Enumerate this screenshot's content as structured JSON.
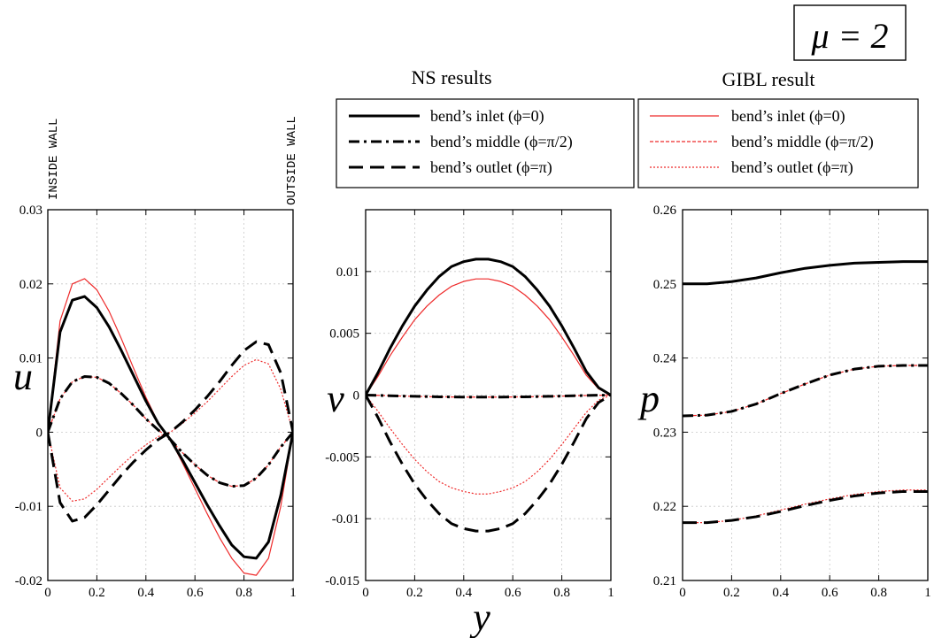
{
  "figure": {
    "param_label": "μ = 2",
    "ns_title": "NS results",
    "gibl_title": "GIBL result",
    "inside_wall": "INSIDE WALL",
    "outside_wall": "OUTSIDE WALL",
    "shared_xlabel": "y",
    "colors": {
      "ns": "#000000",
      "gibl": "#ee2a2a",
      "grid": "#c8c8c8"
    },
    "ns_legend": [
      {
        "label": "bend’s inlet (ϕ=0)",
        "style": "solid"
      },
      {
        "label": "bend’s middle (ϕ=π/2)",
        "style": "dashdot"
      },
      {
        "label": "bend’s outlet (ϕ=π)",
        "style": "dashed"
      }
    ],
    "gibl_legend": [
      {
        "label": "bend’s inlet (ϕ=0)",
        "style": "solid"
      },
      {
        "label": "bend’s middle (ϕ=π/2)",
        "style": "dashed"
      },
      {
        "label": "bend’s outlet (ϕ=π)",
        "style": "dotted"
      }
    ]
  },
  "chart_data": [
    {
      "type": "line",
      "ylabel": "u",
      "xlim": [
        0,
        1
      ],
      "ylim": [
        -0.02,
        0.03
      ],
      "xticks": [
        "0",
        "0.2",
        "0.4",
        "0.6",
        "0.8",
        "1"
      ],
      "yticks": [
        "-0.02",
        "-0.01",
        "0",
        "0.01",
        "0.02",
        "0.03"
      ],
      "grid": true,
      "x": [
        0,
        0.05,
        0.1,
        0.15,
        0.2,
        0.25,
        0.3,
        0.35,
        0.4,
        0.45,
        0.5,
        0.55,
        0.6,
        0.65,
        0.7,
        0.75,
        0.8,
        0.85,
        0.9,
        0.95,
        1
      ],
      "series": [
        {
          "name": "bend’s inlet (ϕ=0)",
          "source": "NS",
          "values": [
            0,
            0.0135,
            0.0178,
            0.0183,
            0.0168,
            0.0142,
            0.011,
            0.0076,
            0.0042,
            0.0012,
            -0.001,
            -0.0038,
            -0.0068,
            -0.0098,
            -0.0126,
            -0.0152,
            -0.0168,
            -0.017,
            -0.0148,
            -0.0085,
            0
          ]
        },
        {
          "name": "bend’s inlet (ϕ=0)",
          "source": "GIBL",
          "values": [
            0,
            0.015,
            0.02,
            0.0207,
            0.0192,
            0.0163,
            0.0126,
            0.0086,
            0.0047,
            0.0013,
            -0.001,
            -0.0042,
            -0.0076,
            -0.011,
            -0.0142,
            -0.017,
            -0.019,
            -0.0193,
            -0.017,
            -0.01,
            0
          ]
        },
        {
          "name": "bend’s middle (ϕ=π/2)",
          "source": "NS",
          "values": [
            0,
            0.0045,
            0.0068,
            0.0075,
            0.0074,
            0.0066,
            0.0052,
            0.0036,
            0.0018,
            0.0003,
            -0.001,
            -0.0028,
            -0.0044,
            -0.0058,
            -0.0068,
            -0.0073,
            -0.0072,
            -0.0062,
            -0.0044,
            -0.002,
            0
          ]
        },
        {
          "name": "bend’s middle (ϕ=π/2)",
          "source": "GIBL",
          "values": [
            0,
            0.0045,
            0.0068,
            0.0075,
            0.0074,
            0.0066,
            0.0052,
            0.0036,
            0.0018,
            0.0003,
            -0.001,
            -0.0028,
            -0.0044,
            -0.0058,
            -0.0068,
            -0.0073,
            -0.0072,
            -0.0062,
            -0.0044,
            -0.002,
            0
          ]
        },
        {
          "name": "bend’s outlet (ϕ=π)",
          "source": "NS",
          "values": [
            0,
            -0.0095,
            -0.012,
            -0.0115,
            -0.0098,
            -0.0078,
            -0.0058,
            -0.004,
            -0.0024,
            -0.001,
            0.0,
            0.0014,
            0.003,
            0.0048,
            0.0068,
            0.009,
            0.011,
            0.0122,
            0.0118,
            0.008,
            0
          ]
        },
        {
          "name": "bend’s outlet (ϕ=π)",
          "source": "GIBL",
          "values": [
            0,
            -0.0075,
            -0.0093,
            -0.009,
            -0.0077,
            -0.0061,
            -0.0045,
            -0.003,
            -0.0017,
            -0.0006,
            0.0,
            0.0012,
            0.0026,
            0.0041,
            0.0058,
            0.0075,
            0.009,
            0.0098,
            0.0092,
            0.0058,
            0
          ]
        }
      ]
    },
    {
      "type": "line",
      "ylabel": "v",
      "xlabel": "y",
      "xlim": [
        0,
        1
      ],
      "ylim": [
        -0.015,
        0.015
      ],
      "xticks": [
        "0",
        "0.2",
        "0.4",
        "0.6",
        "0.8",
        "1"
      ],
      "yticks": [
        "-0.015",
        "-0.01",
        "-0.005",
        "0",
        "0.005",
        "0.01"
      ],
      "grid": true,
      "x": [
        0,
        0.05,
        0.1,
        0.15,
        0.2,
        0.25,
        0.3,
        0.35,
        0.4,
        0.45,
        0.5,
        0.55,
        0.6,
        0.65,
        0.7,
        0.75,
        0.8,
        0.85,
        0.9,
        0.95,
        1
      ],
      "series": [
        {
          "name": "bend’s inlet (ϕ=0)",
          "source": "NS",
          "values": [
            0,
            0.0018,
            0.0038,
            0.0056,
            0.0072,
            0.0085,
            0.0096,
            0.0104,
            0.0108,
            0.011,
            0.011,
            0.0108,
            0.0104,
            0.0096,
            0.0085,
            0.0072,
            0.0056,
            0.0038,
            0.0019,
            0.0006,
            0
          ]
        },
        {
          "name": "bend’s inlet (ϕ=0)",
          "source": "GIBL",
          "values": [
            0,
            0.0015,
            0.0032,
            0.0047,
            0.0061,
            0.0072,
            0.0081,
            0.0088,
            0.0092,
            0.0094,
            0.0094,
            0.0092,
            0.0088,
            0.0081,
            0.0072,
            0.0061,
            0.0047,
            0.0032,
            0.0016,
            0.0005,
            0
          ]
        },
        {
          "name": "bend’s middle (ϕ=π/2)",
          "source": "NS",
          "values": [
            0,
            -2e-05,
            -5e-05,
            -8e-05,
            -0.0001,
            -0.00012,
            -0.00014,
            -0.00015,
            -0.00016,
            -0.00016,
            -0.00016,
            -0.00016,
            -0.00015,
            -0.00014,
            -0.00012,
            -0.0001,
            -8e-05,
            -5e-05,
            -3e-05,
            -1e-05,
            0
          ]
        },
        {
          "name": "bend’s middle (ϕ=π/2)",
          "source": "GIBL",
          "values": [
            0,
            -2e-05,
            -5e-05,
            -8e-05,
            -0.0001,
            -0.00012,
            -0.00014,
            -0.00015,
            -0.00016,
            -0.00016,
            -0.00016,
            -0.00016,
            -0.00015,
            -0.00014,
            -0.00012,
            -0.0001,
            -8e-05,
            -5e-05,
            -3e-05,
            -1e-05,
            0
          ]
        },
        {
          "name": "bend’s outlet (ϕ=π)",
          "source": "NS",
          "values": [
            0,
            -0.0018,
            -0.0038,
            -0.0056,
            -0.0072,
            -0.0085,
            -0.0096,
            -0.0104,
            -0.0108,
            -0.011,
            -0.011,
            -0.0108,
            -0.0104,
            -0.0096,
            -0.0085,
            -0.0072,
            -0.0056,
            -0.0038,
            -0.0019,
            -0.0006,
            0
          ]
        },
        {
          "name": "bend’s outlet (ϕ=π)",
          "source": "GIBL",
          "values": [
            0,
            -0.0013,
            -0.0027,
            -0.004,
            -0.0052,
            -0.0062,
            -0.007,
            -0.0075,
            -0.0078,
            -0.008,
            -0.008,
            -0.0078,
            -0.0075,
            -0.007,
            -0.0062,
            -0.0052,
            -0.004,
            -0.0027,
            -0.0014,
            -0.0004,
            0
          ]
        }
      ]
    },
    {
      "type": "line",
      "ylabel": "p",
      "xlim": [
        0,
        1
      ],
      "ylim": [
        0.21,
        0.26
      ],
      "xticks": [
        "0",
        "0.2",
        "0.4",
        "0.6",
        "0.8",
        "1"
      ],
      "yticks": [
        "0.21",
        "0.22",
        "0.23",
        "0.24",
        "0.25",
        "0.26"
      ],
      "grid": true,
      "x": [
        0,
        0.1,
        0.2,
        0.3,
        0.4,
        0.5,
        0.6,
        0.7,
        0.8,
        0.9,
        1
      ],
      "series": [
        {
          "name": "bend’s inlet (ϕ=0)",
          "source": "NS",
          "values": [
            0.25,
            0.25,
            0.2503,
            0.2508,
            0.2515,
            0.2521,
            0.2525,
            0.2528,
            0.2529,
            0.253,
            0.253
          ]
        },
        {
          "name": "bend’s inlet (ϕ=0)",
          "source": "GIBL",
          "values": [
            0.25,
            0.25,
            0.2503,
            0.2508,
            0.2515,
            0.2521,
            0.2525,
            0.2528,
            0.2529,
            0.253,
            0.253
          ]
        },
        {
          "name": "bend’s middle (ϕ=π/2)",
          "source": "NS",
          "values": [
            0.2322,
            0.2323,
            0.2328,
            0.2338,
            0.2352,
            0.2365,
            0.2377,
            0.2385,
            0.2389,
            0.239,
            0.239
          ]
        },
        {
          "name": "bend’s middle (ϕ=π/2)",
          "source": "GIBL",
          "values": [
            0.2322,
            0.2323,
            0.2328,
            0.2338,
            0.2352,
            0.2365,
            0.2377,
            0.2385,
            0.2389,
            0.239,
            0.239
          ]
        },
        {
          "name": "bend’s outlet (ϕ=π)",
          "source": "NS",
          "values": [
            0.2178,
            0.2178,
            0.2181,
            0.2186,
            0.2193,
            0.2201,
            0.2208,
            0.2214,
            0.2218,
            0.222,
            0.222
          ]
        },
        {
          "name": "bend’s outlet (ϕ=π)",
          "source": "GIBL",
          "values": [
            0.2178,
            0.2178,
            0.2181,
            0.2187,
            0.2195,
            0.2203,
            0.221,
            0.2216,
            0.222,
            0.2222,
            0.2222
          ]
        }
      ]
    }
  ]
}
